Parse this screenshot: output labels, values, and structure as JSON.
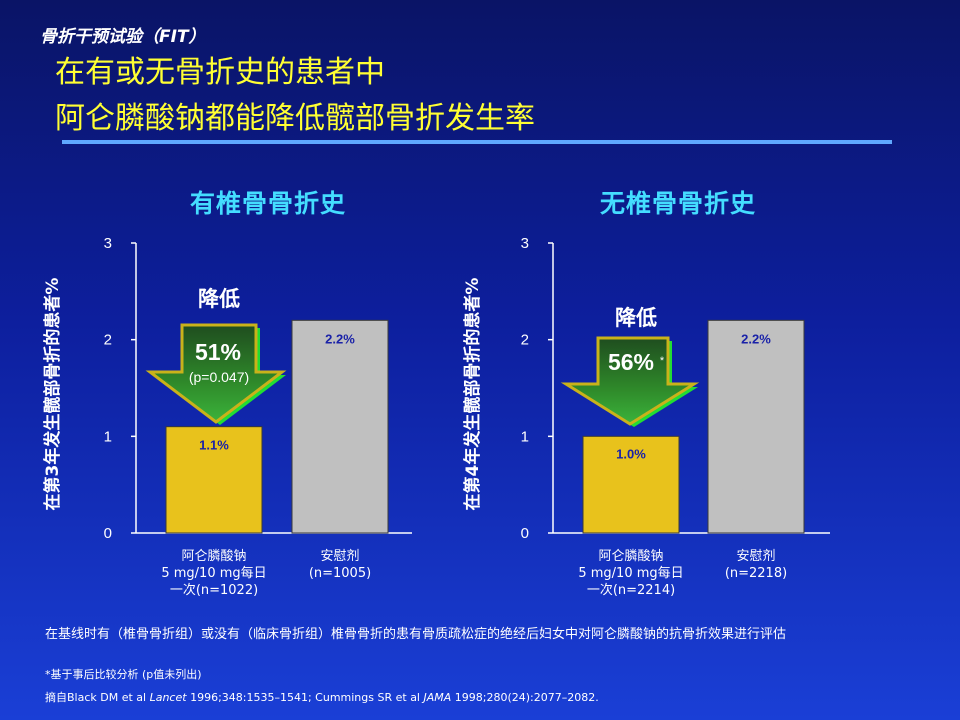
{
  "header": {
    "supertitle": "骨折干预试验（FIT）",
    "title_line1": "在有或无骨折史的患者中",
    "title_line2": "阿仑膦酸钠都能降低髋部骨折发生率"
  },
  "chart_data": [
    {
      "type": "bar",
      "title": "有椎骨骨折史",
      "ylabel": "在第3年发生髋部骨折的患者%",
      "ylim": [
        0,
        3
      ],
      "yticks": [
        "0",
        "1",
        "2",
        "3"
      ],
      "categories": [
        {
          "lines": [
            "阿仑膦酸钠",
            "5 mg/10 mg每日",
            "一次(n=1022)"
          ]
        },
        {
          "lines": [
            "安慰剂",
            "(n=1005)"
          ]
        }
      ],
      "values": [
        1.1,
        2.2
      ],
      "data_labels": [
        "1.1%",
        "2.2%"
      ],
      "bar_colors": [
        "#e8c21c",
        "#c0c0c0"
      ],
      "annotation": {
        "label": "降低",
        "value": "51%",
        "sub": "(p=0.047)"
      }
    },
    {
      "type": "bar",
      "title": "无椎骨骨折史",
      "ylabel": "在第4年发生髋部骨折的患者%",
      "ylim": [
        0,
        3
      ],
      "yticks": [
        "0",
        "1",
        "2",
        "3"
      ],
      "categories": [
        {
          "lines": [
            "阿仑膦酸钠",
            "5 mg/10 mg每日",
            "一次(n=2214)"
          ]
        },
        {
          "lines": [
            "安慰剂",
            "(n=2218)"
          ]
        }
      ],
      "values": [
        1.0,
        2.2
      ],
      "data_labels": [
        "1.0%",
        "2.2%"
      ],
      "bar_colors": [
        "#e8c21c",
        "#c0c0c0"
      ],
      "annotation": {
        "label": "降低",
        "value": "56%",
        "mark": "*"
      }
    }
  ],
  "footnotes": {
    "note1": "在基线时有（椎骨骨折组）或没有（临床骨折组）椎骨骨折的患有骨质疏松症的绝经后妇女中对阿仑膦酸钠的抗骨折效果进行评估",
    "note2": "*基于事后比较分析 (p值未列出)",
    "ref_prefix": "摘自Black DM et al ",
    "ref_journal1": "Lancet",
    "ref_mid": " 1996;348:1535–1541; Cummings  SR et al ",
    "ref_journal2": "JAMA",
    "ref_suffix": " 1998;280(24):2077–2082."
  }
}
